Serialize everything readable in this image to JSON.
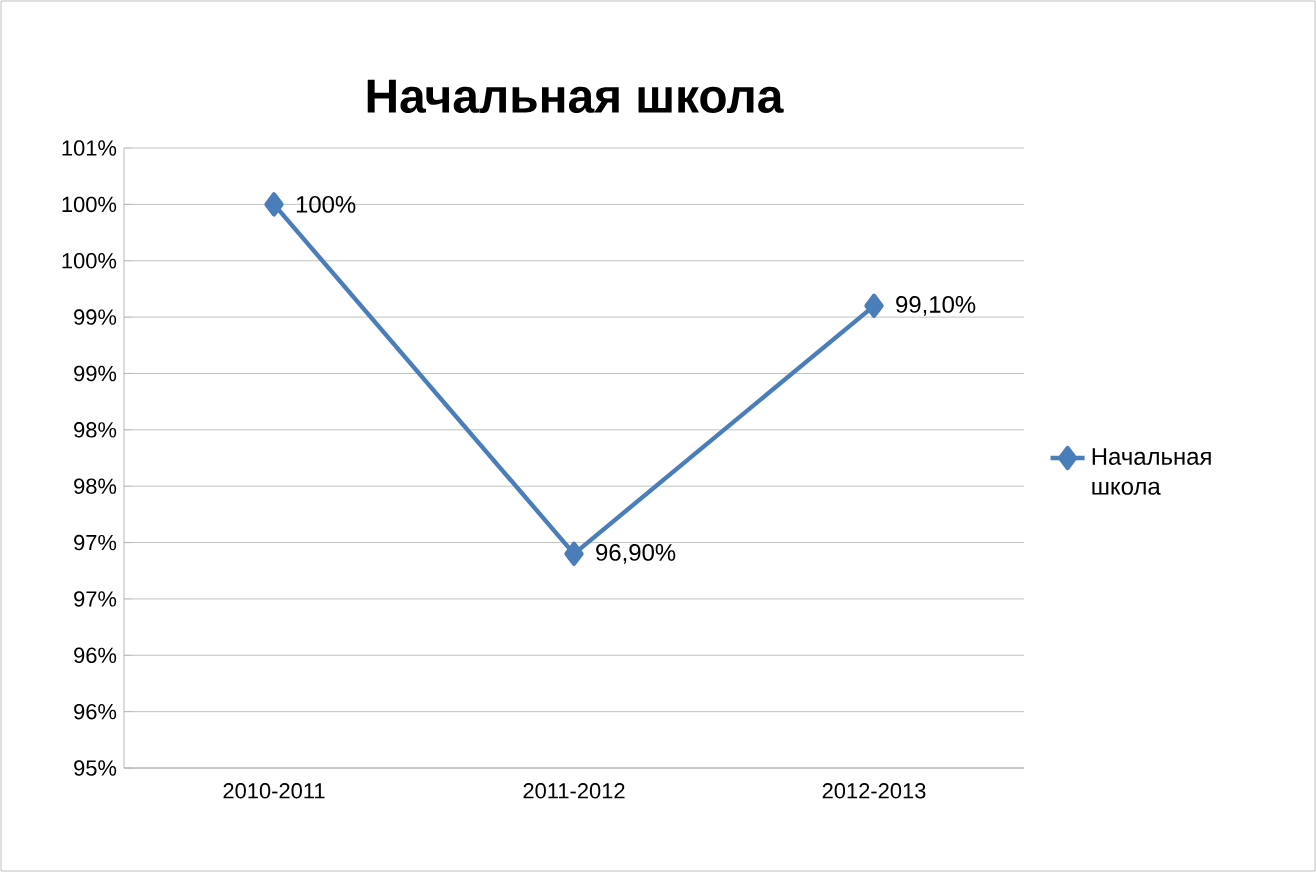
{
  "chart_data": {
    "type": "line",
    "title": "Начальная школа",
    "categories": [
      "2010-2011",
      "2011-2012",
      "2012-2013"
    ],
    "series": [
      {
        "name": "Начальная школа",
        "color": "#4a7ebb",
        "values": [
          100,
          96.9,
          99.1
        ],
        "value_labels": [
          "100%",
          "96,90%",
          "99,10%"
        ]
      }
    ],
    "ylim": [
      95,
      100.5
    ],
    "yticks": [
      {
        "value": 95,
        "label": "95%"
      },
      {
        "value": 95.5,
        "label": "96%"
      },
      {
        "value": 96,
        "label": "96%"
      },
      {
        "value": 96.5,
        "label": "97%"
      },
      {
        "value": 97,
        "label": "97%"
      },
      {
        "value": 97.5,
        "label": "98%"
      },
      {
        "value": 98,
        "label": "98%"
      },
      {
        "value": 98.5,
        "label": "99%"
      },
      {
        "value": 99,
        "label": "99%"
      },
      {
        "value": 99.5,
        "label": "100%"
      },
      {
        "value": 100,
        "label": "100%"
      },
      {
        "value": 100.5,
        "label": "101%"
      }
    ],
    "grid": "y",
    "legend": "right",
    "marker": "diamond",
    "line_style": "solid"
  }
}
